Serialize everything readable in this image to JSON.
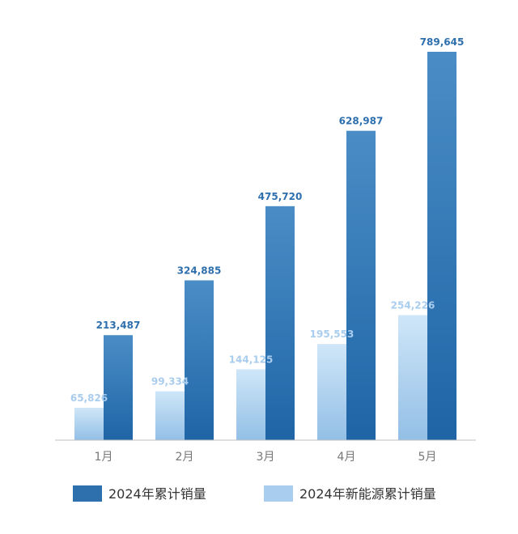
{
  "chart_data": {
    "type": "bar",
    "categories": [
      "1月",
      "2月",
      "3月",
      "4月",
      "5月"
    ],
    "series": [
      {
        "name": "2024年累计销量",
        "values": [
          213487,
          324885,
          475720,
          628987,
          789645
        ],
        "color": "#2e6fad"
      },
      {
        "name": "2024年新能源累计销量",
        "values": [
          65826,
          99334,
          144125,
          195553,
          254226
        ],
        "color": "#a9cdee"
      }
    ],
    "value_labels": {
      "series0": [
        "213,487",
        "324,885",
        "475,720",
        "628,987",
        "789,645"
      ],
      "series1": [
        "65,826",
        "99,334",
        "144,125",
        "195,553",
        "254,226"
      ]
    },
    "ylim": [
      0,
      800000
    ],
    "grid": false,
    "legend": "bottom",
    "title": "",
    "xlabel": "",
    "ylabel": ""
  }
}
